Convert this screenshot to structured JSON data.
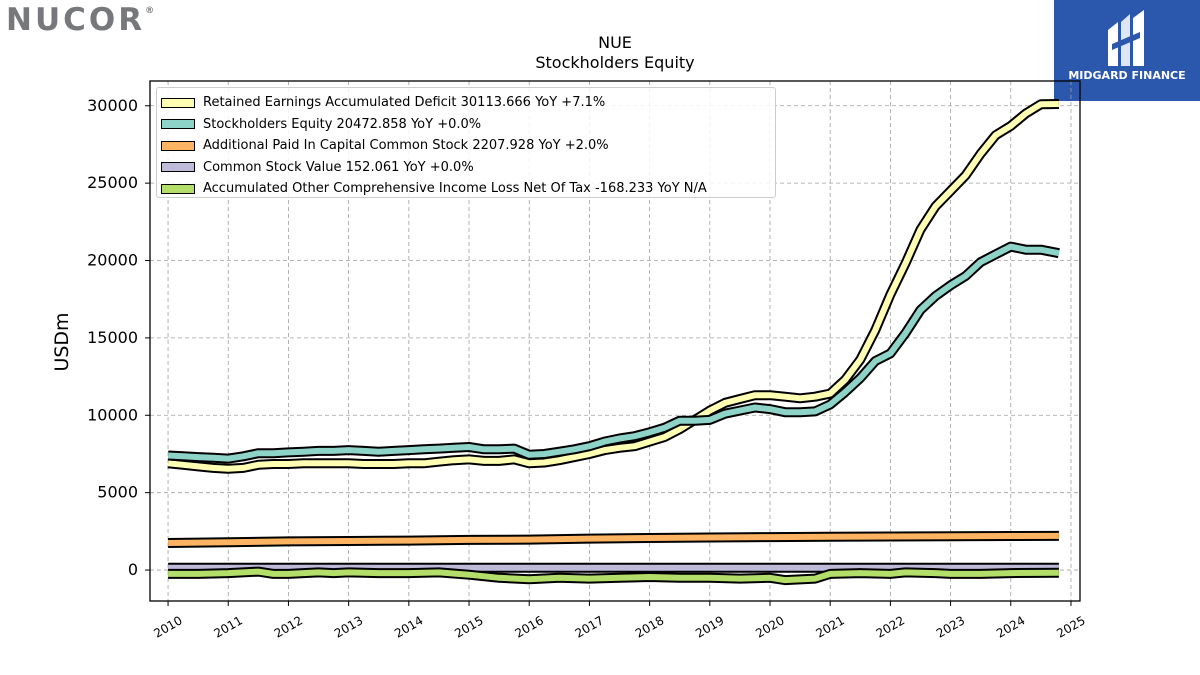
{
  "branding": {
    "company_logo_text": "NUCOR",
    "company_logo_mark": "®",
    "publisher_logo_text": "MIDGARD FINANCE",
    "publisher_logo_icon": "midgard-m-icon",
    "publisher_bg_color": "#2b57ad"
  },
  "chart_data": {
    "type": "line",
    "title": "NUE",
    "subtitle": "Stockholders  Equity",
    "xlabel": "",
    "ylabel": "USDm",
    "xlim": [
      2009.7,
      2025.15
    ],
    "ylim": [
      -2000,
      31600
    ],
    "x_ticks": [
      "2010",
      "2011",
      "2012",
      "2013",
      "2014",
      "2015",
      "2016",
      "2017",
      "2018",
      "2019",
      "2020",
      "2021",
      "2022",
      "2023",
      "2024",
      "2025"
    ],
    "y_ticks": [
      0,
      5000,
      10000,
      15000,
      20000,
      25000,
      30000
    ],
    "grid": true,
    "legend_position": "top-left",
    "series": [
      {
        "name": "Retained Earnings Accumulated Deficit",
        "legend_label": "Retained Earnings Accumulated Deficit  30113.666 YoY +7.1%",
        "color": "#ffffb3",
        "points": [
          [
            2010.0,
            6900
          ],
          [
            2010.25,
            6800
          ],
          [
            2010.5,
            6700
          ],
          [
            2010.75,
            6600
          ],
          [
            2011.0,
            6550
          ],
          [
            2011.25,
            6600
          ],
          [
            2011.5,
            6800
          ],
          [
            2011.75,
            6850
          ],
          [
            2012.0,
            6850
          ],
          [
            2012.25,
            6900
          ],
          [
            2012.5,
            6900
          ],
          [
            2012.75,
            6900
          ],
          [
            2013.0,
            6900
          ],
          [
            2013.25,
            6850
          ],
          [
            2013.5,
            6850
          ],
          [
            2013.75,
            6850
          ],
          [
            2014.0,
            6900
          ],
          [
            2014.25,
            6900
          ],
          [
            2014.5,
            7000
          ],
          [
            2014.75,
            7100
          ],
          [
            2015.0,
            7150
          ],
          [
            2015.25,
            7050
          ],
          [
            2015.5,
            7050
          ],
          [
            2015.75,
            7150
          ],
          [
            2016.0,
            6900
          ],
          [
            2016.25,
            6950
          ],
          [
            2016.5,
            7100
          ],
          [
            2016.75,
            7300
          ],
          [
            2017.0,
            7500
          ],
          [
            2017.25,
            7750
          ],
          [
            2017.5,
            7900
          ],
          [
            2017.75,
            8000
          ],
          [
            2018.0,
            8300
          ],
          [
            2018.25,
            8600
          ],
          [
            2018.5,
            9100
          ],
          [
            2018.75,
            9700
          ],
          [
            2019.0,
            10300
          ],
          [
            2019.25,
            10800
          ],
          [
            2019.5,
            11050
          ],
          [
            2019.75,
            11300
          ],
          [
            2020.0,
            11300
          ],
          [
            2020.25,
            11200
          ],
          [
            2020.5,
            11100
          ],
          [
            2020.75,
            11200
          ],
          [
            2021.0,
            11400
          ],
          [
            2021.25,
            12300
          ],
          [
            2021.5,
            13600
          ],
          [
            2021.75,
            15500
          ],
          [
            2022.0,
            17800
          ],
          [
            2022.25,
            19800
          ],
          [
            2022.5,
            22000
          ],
          [
            2022.75,
            23500
          ],
          [
            2023.0,
            24500
          ],
          [
            2023.25,
            25500
          ],
          [
            2023.5,
            26900
          ],
          [
            2023.75,
            28100
          ],
          [
            2024.0,
            28700
          ],
          [
            2024.25,
            29500
          ],
          [
            2024.5,
            30100
          ],
          [
            2024.8,
            30113.666
          ]
        ]
      },
      {
        "name": "Stockholders Equity",
        "legend_label": "Stockholders Equity  20472.858 YoY +0.0%",
        "color": "#8dd3c7",
        "points": [
          [
            2010.0,
            7400
          ],
          [
            2010.25,
            7350
          ],
          [
            2010.5,
            7300
          ],
          [
            2010.75,
            7250
          ],
          [
            2011.0,
            7200
          ],
          [
            2011.25,
            7350
          ],
          [
            2011.5,
            7550
          ],
          [
            2011.75,
            7550
          ],
          [
            2012.0,
            7600
          ],
          [
            2012.25,
            7650
          ],
          [
            2012.5,
            7700
          ],
          [
            2012.75,
            7700
          ],
          [
            2013.0,
            7750
          ],
          [
            2013.25,
            7700
          ],
          [
            2013.5,
            7650
          ],
          [
            2013.75,
            7700
          ],
          [
            2014.0,
            7750
          ],
          [
            2014.25,
            7800
          ],
          [
            2014.5,
            7850
          ],
          [
            2014.75,
            7900
          ],
          [
            2015.0,
            7950
          ],
          [
            2015.25,
            7800
          ],
          [
            2015.5,
            7800
          ],
          [
            2015.75,
            7850
          ],
          [
            2016.0,
            7450
          ],
          [
            2016.25,
            7500
          ],
          [
            2016.5,
            7650
          ],
          [
            2016.75,
            7800
          ],
          [
            2017.0,
            8000
          ],
          [
            2017.25,
            8300
          ],
          [
            2017.5,
            8500
          ],
          [
            2017.75,
            8650
          ],
          [
            2018.0,
            8900
          ],
          [
            2018.25,
            9200
          ],
          [
            2018.5,
            9650
          ],
          [
            2018.75,
            9650
          ],
          [
            2019.0,
            9700
          ],
          [
            2019.25,
            10100
          ],
          [
            2019.5,
            10300
          ],
          [
            2019.75,
            10500
          ],
          [
            2020.0,
            10400
          ],
          [
            2020.25,
            10200
          ],
          [
            2020.5,
            10200
          ],
          [
            2020.75,
            10250
          ],
          [
            2021.0,
            10700
          ],
          [
            2021.25,
            11500
          ],
          [
            2021.5,
            12400
          ],
          [
            2021.75,
            13500
          ],
          [
            2022.0,
            14000
          ],
          [
            2022.25,
            15300
          ],
          [
            2022.5,
            16800
          ],
          [
            2022.75,
            17700
          ],
          [
            2023.0,
            18400
          ],
          [
            2023.25,
            19000
          ],
          [
            2023.5,
            19900
          ],
          [
            2023.75,
            20400
          ],
          [
            2024.0,
            20900
          ],
          [
            2024.25,
            20700
          ],
          [
            2024.5,
            20700
          ],
          [
            2024.8,
            20472.858
          ]
        ]
      },
      {
        "name": "Additional Paid In Capital Common Stock",
        "legend_label": "Additional Paid In Capital Common Stock  2207.928 YoY +2.0%",
        "color": "#fdb462",
        "points": [
          [
            2010.0,
            1750
          ],
          [
            2011.0,
            1800
          ],
          [
            2012.0,
            1850
          ],
          [
            2013.0,
            1880
          ],
          [
            2014.0,
            1900
          ],
          [
            2015.0,
            1950
          ],
          [
            2016.0,
            1970
          ],
          [
            2017.0,
            2030
          ],
          [
            2018.0,
            2070
          ],
          [
            2019.0,
            2100
          ],
          [
            2020.0,
            2130
          ],
          [
            2021.0,
            2150
          ],
          [
            2022.0,
            2170
          ],
          [
            2023.0,
            2190
          ],
          [
            2024.0,
            2200
          ],
          [
            2024.8,
            2207.928
          ]
        ]
      },
      {
        "name": "Common Stock Value",
        "legend_label": "Common Stock Value  152.061 YoY +0.0%",
        "color": "#bebada",
        "points": [
          [
            2010.0,
            152
          ],
          [
            2024.8,
            152.061
          ]
        ]
      },
      {
        "name": "Accumulated Other Comprehensive Income Loss Net Of Tax",
        "legend_label": "Accumulated Other Comprehensive Income Loss Net Of Tax  -168.233 YoY N/A",
        "color": "#b3de69",
        "points": [
          [
            2010.0,
            -250
          ],
          [
            2010.5,
            -250
          ],
          [
            2011.0,
            -200
          ],
          [
            2011.5,
            -100
          ],
          [
            2011.75,
            -250
          ],
          [
            2012.0,
            -250
          ],
          [
            2012.5,
            -150
          ],
          [
            2012.75,
            -200
          ],
          [
            2013.0,
            -150
          ],
          [
            2013.5,
            -200
          ],
          [
            2014.0,
            -200
          ],
          [
            2014.5,
            -150
          ],
          [
            2015.0,
            -300
          ],
          [
            2015.5,
            -500
          ],
          [
            2016.0,
            -600
          ],
          [
            2016.5,
            -500
          ],
          [
            2017.0,
            -550
          ],
          [
            2017.5,
            -500
          ],
          [
            2018.0,
            -450
          ],
          [
            2018.5,
            -500
          ],
          [
            2019.0,
            -500
          ],
          [
            2019.5,
            -550
          ],
          [
            2020.0,
            -500
          ],
          [
            2020.25,
            -650
          ],
          [
            2020.75,
            -550
          ],
          [
            2021.0,
            -250
          ],
          [
            2021.5,
            -200
          ],
          [
            2022.0,
            -250
          ],
          [
            2022.25,
            -150
          ],
          [
            2022.75,
            -200
          ],
          [
            2023.0,
            -250
          ],
          [
            2023.5,
            -250
          ],
          [
            2024.0,
            -200
          ],
          [
            2024.8,
            -168.233
          ]
        ]
      }
    ]
  }
}
